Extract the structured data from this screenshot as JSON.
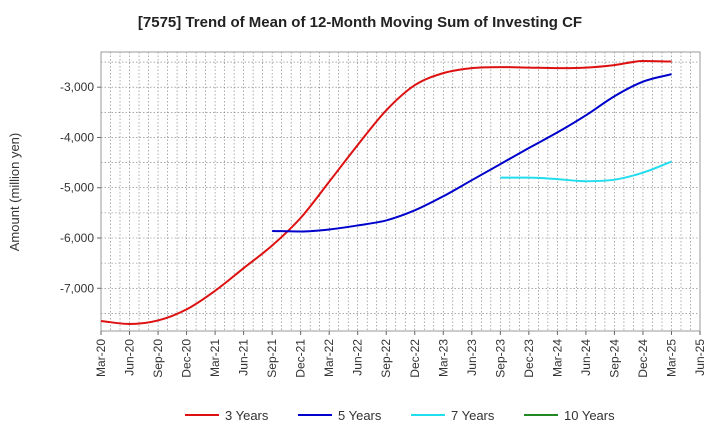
{
  "chart_data": {
    "type": "line",
    "title": "[7575]  Trend of Mean of 12-Month Moving Sum of Investing CF",
    "ylabel": "Amount (million yen)",
    "xlabel": "",
    "ylim": [
      -7850,
      -2300
    ],
    "yticks": [
      -7000,
      -6000,
      -5000,
      -4000,
      -3000
    ],
    "ytick_labels": [
      "-7,000",
      "-6,000",
      "-5,000",
      "-4,000",
      "-3,000"
    ],
    "x_start": "Mar-20",
    "x_end": "Jun-25",
    "categories": [
      "Mar-20",
      "Jun-20",
      "Sep-20",
      "Dec-20",
      "Mar-21",
      "Jun-21",
      "Sep-21",
      "Dec-21",
      "Mar-22",
      "Jun-22",
      "Sep-22",
      "Dec-22",
      "Mar-23",
      "Jun-23",
      "Sep-23",
      "Dec-23",
      "Mar-24",
      "Jun-24",
      "Sep-24",
      "Dec-24",
      "Mar-25",
      "Jun-25"
    ],
    "grid": true,
    "legend_position": "bottom",
    "series": [
      {
        "name": "3 Years",
        "color": "#dd1111",
        "points": [
          [
            0,
            -7650
          ],
          [
            1,
            -7710
          ],
          [
            2,
            -7640
          ],
          [
            3,
            -7420
          ],
          [
            4,
            -7050
          ],
          [
            5,
            -6600
          ],
          [
            6,
            -6150
          ],
          [
            7,
            -5600
          ],
          [
            8,
            -4880
          ],
          [
            9,
            -4150
          ],
          [
            10,
            -3460
          ],
          [
            11,
            -2960
          ],
          [
            12,
            -2720
          ],
          [
            13,
            -2620
          ],
          [
            14,
            -2600
          ],
          [
            15,
            -2610
          ],
          [
            16,
            -2620
          ],
          [
            17,
            -2610
          ],
          [
            18,
            -2560
          ],
          [
            19,
            -2480
          ],
          [
            20,
            -2490
          ]
        ]
      },
      {
        "name": "5 Years",
        "color": "#0000cc",
        "points": [
          [
            6,
            -5860
          ],
          [
            7,
            -5870
          ],
          [
            8,
            -5830
          ],
          [
            9,
            -5750
          ],
          [
            10,
            -5650
          ],
          [
            11,
            -5450
          ],
          [
            12,
            -5170
          ],
          [
            13,
            -4850
          ],
          [
            14,
            -4530
          ],
          [
            15,
            -4210
          ],
          [
            16,
            -3900
          ],
          [
            17,
            -3560
          ],
          [
            18,
            -3180
          ],
          [
            19,
            -2890
          ],
          [
            20,
            -2740
          ]
        ]
      },
      {
        "name": "7 Years",
        "color": "#22ddee",
        "points": [
          [
            14,
            -4800
          ],
          [
            15,
            -4800
          ],
          [
            16,
            -4830
          ],
          [
            17,
            -4870
          ],
          [
            18,
            -4840
          ],
          [
            19,
            -4700
          ],
          [
            20,
            -4480
          ]
        ]
      },
      {
        "name": "10 Years",
        "color": "#228822",
        "points": []
      }
    ]
  }
}
